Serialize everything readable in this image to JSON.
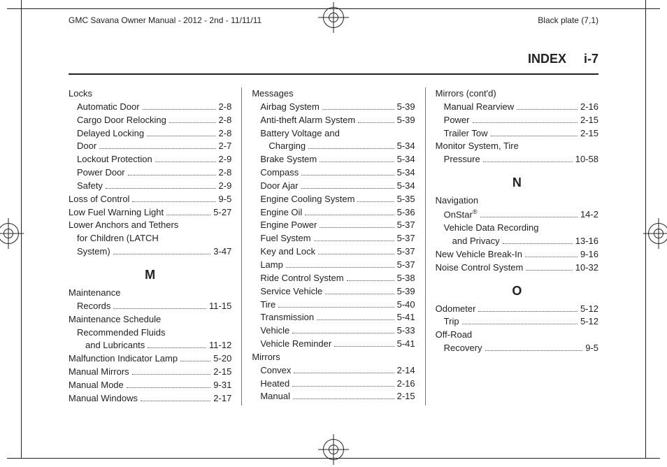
{
  "header": {
    "manual_title": "GMC Savana Owner Manual - 2012 - 2nd - 11/11/11",
    "plate": "Black plate (7,1)",
    "section": "INDEX",
    "page_num": "i-7"
  },
  "columns": [
    {
      "items": [
        {
          "type": "plain",
          "indent": 0,
          "label": "Locks"
        },
        {
          "type": "entry",
          "indent": 1,
          "label": "Automatic Door",
          "page": "2-8"
        },
        {
          "type": "entry",
          "indent": 1,
          "label": "Cargo Door Relocking",
          "page": "2-8"
        },
        {
          "type": "entry",
          "indent": 1,
          "label": "Delayed Locking",
          "page": "2-8"
        },
        {
          "type": "entry",
          "indent": 1,
          "label": "Door",
          "page": "2-7"
        },
        {
          "type": "entry",
          "indent": 1,
          "label": "Lockout Protection",
          "page": "2-9"
        },
        {
          "type": "entry",
          "indent": 1,
          "label": "Power Door",
          "page": "2-8"
        },
        {
          "type": "entry",
          "indent": 1,
          "label": "Safety",
          "page": "2-9"
        },
        {
          "type": "entry",
          "indent": 0,
          "label": "Loss of Control",
          "page": "9-5"
        },
        {
          "type": "entry",
          "indent": 0,
          "label": "Low Fuel Warning Light",
          "page": "5-27"
        },
        {
          "type": "plain",
          "indent": 0,
          "label": "Lower Anchors and Tethers"
        },
        {
          "type": "plain",
          "indent": 1,
          "label": "for Children (LATCH"
        },
        {
          "type": "entry",
          "indent": 1,
          "label": "System)",
          "page": "3-47"
        },
        {
          "type": "section",
          "label": "M"
        },
        {
          "type": "plain",
          "indent": 0,
          "label": "Maintenance"
        },
        {
          "type": "entry",
          "indent": 1,
          "label": "Records",
          "page": "11-15"
        },
        {
          "type": "plain",
          "indent": 0,
          "label": "Maintenance Schedule"
        },
        {
          "type": "plain",
          "indent": 1,
          "label": "Recommended Fluids"
        },
        {
          "type": "entry",
          "indent": 2,
          "label": "and Lubricants",
          "page": "11-12"
        },
        {
          "type": "entry",
          "indent": 0,
          "label": "Malfunction Indicator Lamp",
          "page": "5-20"
        },
        {
          "type": "entry",
          "indent": 0,
          "label": "Manual Mirrors",
          "page": "2-15"
        },
        {
          "type": "entry",
          "indent": 0,
          "label": "Manual Mode",
          "page": "9-31"
        },
        {
          "type": "entry",
          "indent": 0,
          "label": "Manual Windows",
          "page": "2-17"
        }
      ]
    },
    {
      "items": [
        {
          "type": "plain",
          "indent": 0,
          "label": "Messages"
        },
        {
          "type": "entry",
          "indent": 1,
          "label": "Airbag System",
          "page": "5-39"
        },
        {
          "type": "entry",
          "indent": 1,
          "label": "Anti-theft Alarm System",
          "page": "5-39"
        },
        {
          "type": "plain",
          "indent": 1,
          "label": "Battery Voltage and"
        },
        {
          "type": "entry",
          "indent": 2,
          "label": "Charging",
          "page": "5-34"
        },
        {
          "type": "entry",
          "indent": 1,
          "label": "Brake System",
          "page": "5-34"
        },
        {
          "type": "entry",
          "indent": 1,
          "label": "Compass",
          "page": "5-34"
        },
        {
          "type": "entry",
          "indent": 1,
          "label": "Door Ajar",
          "page": "5-34"
        },
        {
          "type": "entry",
          "indent": 1,
          "label": "Engine Cooling System",
          "page": "5-35"
        },
        {
          "type": "entry",
          "indent": 1,
          "label": "Engine Oil",
          "page": "5-36"
        },
        {
          "type": "entry",
          "indent": 1,
          "label": "Engine Power",
          "page": "5-37"
        },
        {
          "type": "entry",
          "indent": 1,
          "label": "Fuel System",
          "page": "5-37"
        },
        {
          "type": "entry",
          "indent": 1,
          "label": "Key and Lock",
          "page": "5-37"
        },
        {
          "type": "entry",
          "indent": 1,
          "label": "Lamp",
          "page": "5-37"
        },
        {
          "type": "entry",
          "indent": 1,
          "label": "Ride Control System",
          "page": "5-38"
        },
        {
          "type": "entry",
          "indent": 1,
          "label": "Service Vehicle",
          "page": "5-39"
        },
        {
          "type": "entry",
          "indent": 1,
          "label": "Tire",
          "page": "5-40"
        },
        {
          "type": "entry",
          "indent": 1,
          "label": "Transmission",
          "page": "5-41"
        },
        {
          "type": "entry",
          "indent": 1,
          "label": "Vehicle",
          "page": "5-33"
        },
        {
          "type": "entry",
          "indent": 1,
          "label": "Vehicle Reminder",
          "page": "5-41"
        },
        {
          "type": "plain",
          "indent": 0,
          "label": "Mirrors"
        },
        {
          "type": "entry",
          "indent": 1,
          "label": "Convex",
          "page": "2-14"
        },
        {
          "type": "entry",
          "indent": 1,
          "label": "Heated",
          "page": "2-16"
        },
        {
          "type": "entry",
          "indent": 1,
          "label": "Manual",
          "page": "2-15"
        }
      ]
    },
    {
      "items": [
        {
          "type": "plain",
          "indent": 0,
          "label": "Mirrors (cont'd)"
        },
        {
          "type": "entry",
          "indent": 1,
          "label": "Manual Rearview",
          "page": "2-16"
        },
        {
          "type": "entry",
          "indent": 1,
          "label": "Power",
          "page": "2-15"
        },
        {
          "type": "entry",
          "indent": 1,
          "label": "Trailer Tow",
          "page": "2-15"
        },
        {
          "type": "plain",
          "indent": 0,
          "label": "Monitor System, Tire"
        },
        {
          "type": "entry",
          "indent": 1,
          "label": "Pressure",
          "page": "10-58"
        },
        {
          "type": "section",
          "label": "N"
        },
        {
          "type": "plain",
          "indent": 0,
          "label": "Navigation"
        },
        {
          "type": "entry",
          "indent": 1,
          "label": "OnStar",
          "super": "®",
          "page": "14-2"
        },
        {
          "type": "plain",
          "indent": 1,
          "label": "Vehicle Data Recording"
        },
        {
          "type": "entry",
          "indent": 2,
          "label": "and Privacy",
          "page": "13-16"
        },
        {
          "type": "entry",
          "indent": 0,
          "label": "New Vehicle Break-In",
          "page": "9-16"
        },
        {
          "type": "entry",
          "indent": 0,
          "label": "Noise Control System",
          "page": "10-32"
        },
        {
          "type": "section",
          "label": "O"
        },
        {
          "type": "entry",
          "indent": 0,
          "label": "Odometer",
          "page": "5-12"
        },
        {
          "type": "entry",
          "indent": 1,
          "label": "Trip",
          "page": "5-12"
        },
        {
          "type": "plain",
          "indent": 0,
          "label": "Off-Road"
        },
        {
          "type": "entry",
          "indent": 1,
          "label": "Recovery",
          "page": "9-5"
        }
      ]
    }
  ]
}
